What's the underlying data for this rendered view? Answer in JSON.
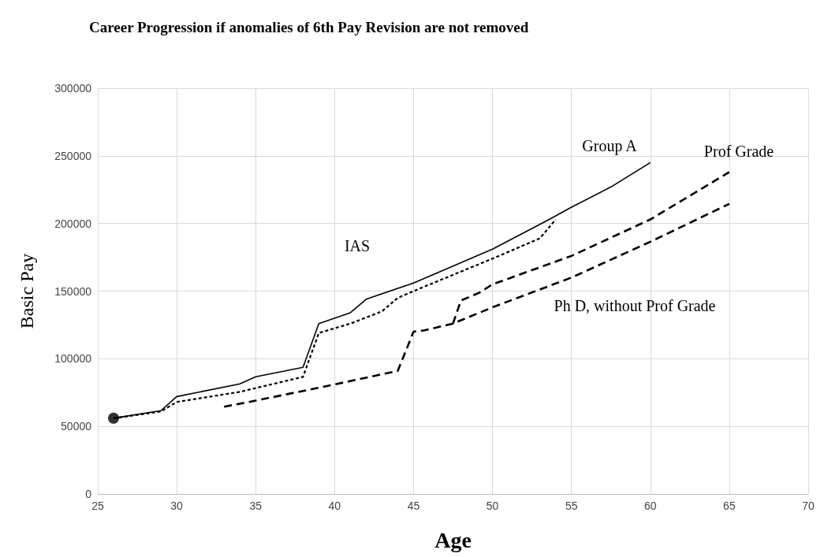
{
  "chart_data": {
    "type": "line",
    "title": "Career Progression if anomalies of 6th Pay Revision are not removed",
    "xlabel": "Age",
    "ylabel": "Basic Pay",
    "xlim": [
      25,
      70
    ],
    "xticks": [
      25,
      30,
      35,
      40,
      45,
      50,
      55,
      60,
      65,
      70
    ],
    "ylim": [
      0,
      300000
    ],
    "yticks": [
      0,
      50000,
      100000,
      150000,
      200000,
      250000,
      300000
    ],
    "grid": true,
    "marker": "none",
    "series": [
      {
        "color": "#000000",
        "line_style": "solid",
        "x": [
          26,
          29,
          30,
          34,
          35,
          38,
          39,
          41,
          42,
          45,
          50,
          53.6,
          55,
          57.5,
          60
        ],
        "values": [
          56000,
          61600,
          72000,
          81400,
          86600,
          93600,
          126000,
          134000,
          144000,
          156000,
          181000,
          203000,
          212000,
          227000,
          245000
        ]
      },
      {
        "color": "#000000",
        "line_style": "dotted",
        "x": [
          26,
          29,
          30,
          34,
          38,
          39,
          41,
          43,
          44,
          45,
          50,
          53,
          54
        ],
        "values": [
          56000,
          61000,
          68000,
          75500,
          86600,
          119000,
          126000,
          135000,
          145000,
          150000,
          174000,
          189000,
          203000
        ]
      },
      {
        "color": "#000000",
        "line_style": "dashed",
        "x": [
          47.5,
          48,
          49.2,
          50,
          55,
          60,
          65
        ],
        "values": [
          126000,
          143000,
          149000,
          155000,
          176000,
          203000,
          238000
        ]
      },
      {
        "color": "#000000",
        "line_style": "dashed",
        "x": [
          33,
          35,
          40,
          44,
          45,
          45.7,
          47.5,
          50,
          55,
          60,
          65
        ],
        "values": [
          64500,
          69000,
          81000,
          91000,
          120000,
          121000,
          126000,
          138000,
          160000,
          186500,
          214500
        ]
      },
      {
        "type": "scatter",
        "color": "#000000",
        "marker": "circle",
        "x": [
          26
        ],
        "values": [
          56000
        ]
      }
    ],
    "annotations": [
      "Group A",
      "Prof Grade",
      "IAS",
      "Ph D, without Prof Grade"
    ]
  }
}
